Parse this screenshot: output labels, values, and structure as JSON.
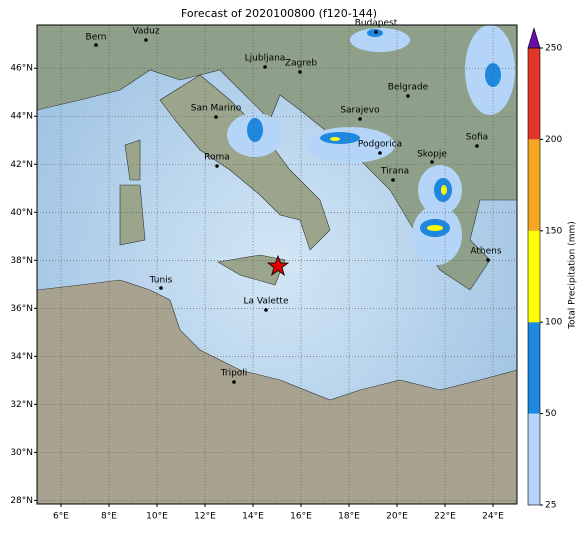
{
  "chart_data": {
    "type": "map",
    "title": "Forecast of 2020100800 (f120-144)",
    "xlim": [
      5,
      25
    ],
    "ylim": [
      27.85,
      47.8
    ],
    "xticks": [
      {
        "value": 6,
        "label": "6°E"
      },
      {
        "value": 8,
        "label": "8°E"
      },
      {
        "value": 10,
        "label": "10°E"
      },
      {
        "value": 12,
        "label": "12°E"
      },
      {
        "value": 14,
        "label": "14°E"
      },
      {
        "value": 16,
        "label": "16°E"
      },
      {
        "value": 18,
        "label": "18°E"
      },
      {
        "value": 20,
        "label": "20°E"
      },
      {
        "value": 22,
        "label": "22°E"
      },
      {
        "value": 24,
        "label": "24°E"
      }
    ],
    "yticks": [
      {
        "value": 28,
        "label": "28°N"
      },
      {
        "value": 30,
        "label": "30°N"
      },
      {
        "value": 32,
        "label": "32°N"
      },
      {
        "value": 34,
        "label": "34°N"
      },
      {
        "value": 36,
        "label": "36°N"
      },
      {
        "value": 38,
        "label": "38°N"
      },
      {
        "value": 40,
        "label": "40°N"
      },
      {
        "value": 42,
        "label": "42°N"
      },
      {
        "value": 44,
        "label": "44°N"
      },
      {
        "value": 46,
        "label": "46°N"
      }
    ],
    "grid": true,
    "cities": [
      "Bern",
      "Vaduz",
      "Budapest",
      "Ljubljana",
      "Zagreb",
      "Belgrade",
      "San Marino",
      "Sarajevo",
      "Podgorica",
      "Sofia",
      "Skopje",
      "Roma",
      "Tirana",
      "Athens",
      "Tunis",
      "La Valette",
      "Tripoli"
    ],
    "colorbar": {
      "label": "Total Precipitation (mm)",
      "ticks": [
        25,
        50,
        100,
        150,
        200,
        250
      ],
      "colors": [
        "#b4d5f7",
        "#1e88e0",
        "#ffff00",
        "#f5a623",
        "#e0362a"
      ],
      "extend_color": "#6a0dad"
    }
  }
}
